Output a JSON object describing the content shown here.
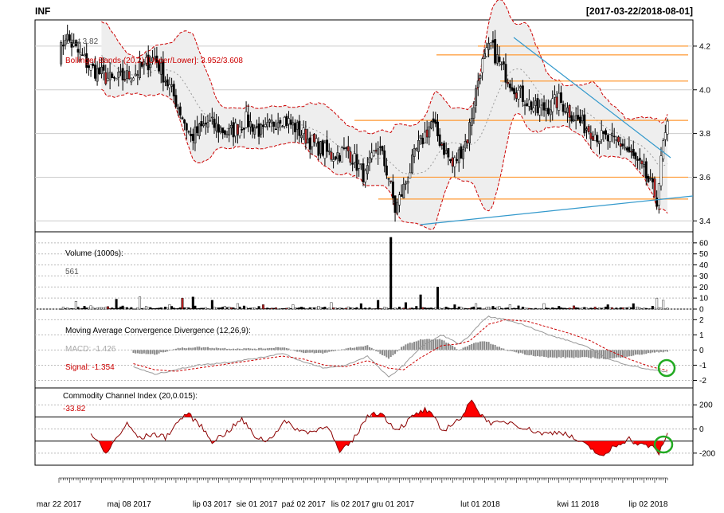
{
  "header": {
    "symbol": "INF",
    "date_range": "[2017-03-22/2018-08-01]"
  },
  "colors": {
    "up": "#ffffff",
    "down": "#000000",
    "down_red": "#b22222",
    "bands_line": "#cc0000",
    "bands_fill": "#eeeeee",
    "trend_line": "#3399cc",
    "level_line": "#ff9933",
    "grid": "#bbbbbb",
    "macd_line": "#999999",
    "signal_line": "#cc0000",
    "cci_line": "#8b0000",
    "cci_fill": "#ff0000",
    "circle": "#22aa22"
  },
  "chart_data": [
    {
      "type": "candlestick",
      "panel": "price",
      "title": "INF",
      "last_label": "Last 3.82",
      "bands_label": "Bollinger Bands (20,2) [Upper/Lower]: 3.952/3.608",
      "ylim": [
        3.35,
        4.32
      ],
      "y_ticks": [
        3.4,
        3.6,
        3.8,
        4.0,
        4.2
      ],
      "y_tick_labels": [
        "3.4",
        "3.6",
        "3.8",
        "4.0",
        "4.2"
      ],
      "horizontal_levels": [
        4.2,
        4.16,
        4.04,
        3.86,
        3.6,
        3.5
      ],
      "trendlines": [
        {
          "from": [
            "2018-01-26",
            4.3
          ],
          "to": [
            "2018-08-01",
            3.72
          ]
        },
        {
          "from": [
            "2017-11-20",
            3.38
          ],
          "to": [
            "2018-08-01",
            3.51
          ]
        }
      ]
    },
    {
      "type": "bar",
      "panel": "volume",
      "title": "Volume (1000s):",
      "last_label": "561",
      "ylim": [
        0,
        70
      ],
      "y_ticks": [
        0,
        10,
        20,
        30,
        40,
        50,
        60
      ],
      "y_tick_labels": [
        "0",
        "10",
        "20",
        "30",
        "40",
        "50",
        "60"
      ]
    },
    {
      "type": "line",
      "panel": "macd",
      "title": "Moving Average Convergence Divergence (12,26,9):",
      "macd_label": "MACD: -1.426",
      "signal_label": "Signal: -1.354",
      "ylim": [
        -2.5,
        2.7
      ],
      "y_ticks": [
        -2,
        -1,
        0,
        1,
        2
      ],
      "y_tick_labels": [
        "-2",
        "-1",
        "0",
        "1",
        "2"
      ]
    },
    {
      "type": "line",
      "panel": "cci",
      "title": "Commodity Channel Index (20,0.015):",
      "last_label": "-33.82",
      "ylim": [
        -300,
        340
      ],
      "y_ticks": [
        -200,
        0,
        200
      ],
      "y_tick_labels": [
        "-200",
        "0",
        "200"
      ],
      "band_lines": [
        100,
        -100
      ]
    }
  ],
  "x_axis": {
    "labels": [
      "mar 22 2017",
      "maj 08 2017",
      "lip 03 2017",
      "sie 01 2017",
      "paź 02 2017",
      "lis 02 2017",
      "gru 01 2017",
      "lut 01 2018",
      "kwi 11 2018",
      "lip 02 2018"
    ],
    "label_positions": [
      0,
      33,
      72,
      93,
      115,
      137,
      157,
      198,
      244,
      277
    ]
  },
  "series": {
    "n_bars": 344,
    "price_nodes": [
      [
        0,
        4.15
      ],
      [
        3,
        4.25
      ],
      [
        8,
        4.18
      ],
      [
        15,
        4.1
      ],
      [
        25,
        4.04
      ],
      [
        35,
        4.07
      ],
      [
        45,
        4.15
      ],
      [
        55,
        3.95
      ],
      [
        62,
        3.78
      ],
      [
        70,
        3.85
      ],
      [
        80,
        3.8
      ],
      [
        88,
        3.86
      ],
      [
        96,
        3.8
      ],
      [
        104,
        3.88
      ],
      [
        112,
        3.82
      ],
      [
        120,
        3.75
      ],
      [
        128,
        3.7
      ],
      [
        136,
        3.72
      ],
      [
        144,
        3.6
      ],
      [
        150,
        3.75
      ],
      [
        155,
        3.6
      ],
      [
        158,
        3.45
      ],
      [
        162,
        3.55
      ],
      [
        168,
        3.72
      ],
      [
        175,
        3.85
      ],
      [
        180,
        3.75
      ],
      [
        185,
        3.65
      ],
      [
        192,
        3.78
      ],
      [
        198,
        4.1
      ],
      [
        203,
        4.2
      ],
      [
        208,
        4.1
      ],
      [
        215,
        4.0
      ],
      [
        225,
        3.9
      ],
      [
        235,
        3.95
      ],
      [
        245,
        3.85
      ],
      [
        255,
        3.78
      ],
      [
        265,
        3.75
      ],
      [
        275,
        3.62
      ],
      [
        281,
        3.5
      ],
      [
        284,
        3.75
      ],
      [
        286,
        3.82
      ]
    ],
    "macd_nodes": [
      [
        0,
        -0.3
      ],
      [
        25,
        -0.6
      ],
      [
        35,
        -1.1
      ],
      [
        45,
        -1.6
      ],
      [
        55,
        -1.3
      ],
      [
        65,
        -1.0
      ],
      [
        80,
        -0.8
      ],
      [
        95,
        -0.5
      ],
      [
        105,
        -0.2
      ],
      [
        115,
        -0.8
      ],
      [
        125,
        -1.2
      ],
      [
        135,
        -1.0
      ],
      [
        145,
        -0.4
      ],
      [
        155,
        -1.8
      ],
      [
        162,
        -1.0
      ],
      [
        170,
        0.2
      ],
      [
        180,
        1.0
      ],
      [
        188,
        0.4
      ],
      [
        193,
        0.9
      ],
      [
        198,
        1.8
      ],
      [
        202,
        2.2
      ],
      [
        210,
        2.0
      ],
      [
        220,
        1.6
      ],
      [
        230,
        1.0
      ],
      [
        240,
        0.6
      ],
      [
        250,
        0.1
      ],
      [
        258,
        -0.6
      ],
      [
        268,
        -1.0
      ],
      [
        278,
        -1.3
      ],
      [
        286,
        -1.43
      ]
    ],
    "signal_nodes": [
      [
        0,
        -0.1
      ],
      [
        25,
        -0.5
      ],
      [
        35,
        -0.9
      ],
      [
        45,
        -1.3
      ],
      [
        55,
        -1.4
      ],
      [
        65,
        -1.2
      ],
      [
        80,
        -0.9
      ],
      [
        95,
        -0.6
      ],
      [
        105,
        -0.4
      ],
      [
        115,
        -0.6
      ],
      [
        125,
        -1.0
      ],
      [
        135,
        -1.1
      ],
      [
        145,
        -0.7
      ],
      [
        155,
        -1.2
      ],
      [
        162,
        -1.3
      ],
      [
        170,
        -0.5
      ],
      [
        180,
        0.3
      ],
      [
        188,
        0.4
      ],
      [
        193,
        0.6
      ],
      [
        198,
        1.2
      ],
      [
        202,
        1.7
      ],
      [
        210,
        2.0
      ],
      [
        220,
        1.9
      ],
      [
        230,
        1.5
      ],
      [
        240,
        1.1
      ],
      [
        250,
        0.6
      ],
      [
        258,
        0.0
      ],
      [
        268,
        -0.6
      ],
      [
        278,
        -1.1
      ],
      [
        286,
        -1.35
      ]
    ],
    "cci_nodes": [
      [
        0,
        80
      ],
      [
        10,
        60
      ],
      [
        18,
        -100
      ],
      [
        22,
        -210
      ],
      [
        26,
        -100
      ],
      [
        32,
        40
      ],
      [
        38,
        -80
      ],
      [
        44,
        -40
      ],
      [
        50,
        -70
      ],
      [
        56,
        60
      ],
      [
        60,
        130
      ],
      [
        66,
        40
      ],
      [
        72,
        -100
      ],
      [
        78,
        -40
      ],
      [
        86,
        80
      ],
      [
        92,
        -60
      ],
      [
        98,
        -100
      ],
      [
        106,
        60
      ],
      [
        114,
        -20
      ],
      [
        120,
        -20
      ],
      [
        126,
        40
      ],
      [
        132,
        -200
      ],
      [
        138,
        -100
      ],
      [
        144,
        80
      ],
      [
        148,
        140
      ],
      [
        152,
        120
      ],
      [
        158,
        0
      ],
      [
        162,
        30
      ],
      [
        166,
        100
      ],
      [
        172,
        160
      ],
      [
        176,
        100
      ],
      [
        180,
        -20
      ],
      [
        186,
        60
      ],
      [
        190,
        100
      ],
      [
        194,
        260
      ],
      [
        198,
        120
      ],
      [
        204,
        40
      ],
      [
        212,
        60
      ],
      [
        220,
        0
      ],
      [
        228,
        -40
      ],
      [
        236,
        -20
      ],
      [
        244,
        -100
      ],
      [
        250,
        -160
      ],
      [
        256,
        -240
      ],
      [
        260,
        -150
      ],
      [
        268,
        -80
      ],
      [
        272,
        -130
      ],
      [
        278,
        -140
      ],
      [
        282,
        -200
      ],
      [
        286,
        -34
      ]
    ],
    "volume_spikes": [
      [
        8,
        7
      ],
      [
        15,
        3
      ],
      [
        27,
        9
      ],
      [
        38,
        11
      ],
      [
        52,
        4
      ],
      [
        58,
        10
      ],
      [
        63,
        11
      ],
      [
        72,
        8
      ],
      [
        84,
        5
      ],
      [
        96,
        4
      ],
      [
        110,
        4
      ],
      [
        128,
        6
      ],
      [
        142,
        5
      ],
      [
        150,
        8
      ],
      [
        156,
        65
      ],
      [
        163,
        6
      ],
      [
        170,
        13
      ],
      [
        178,
        20
      ],
      [
        186,
        4
      ],
      [
        196,
        5
      ],
      [
        212,
        4
      ],
      [
        228,
        5
      ],
      [
        242,
        3
      ],
      [
        258,
        4
      ],
      [
        270,
        5
      ],
      [
        281,
        10
      ],
      [
        284,
        8
      ]
    ]
  }
}
